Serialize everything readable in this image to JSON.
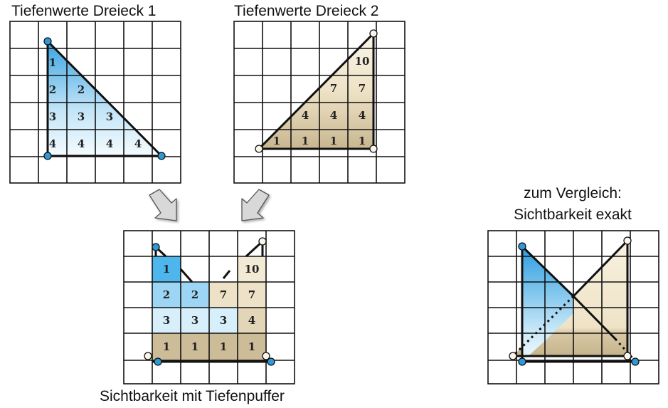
{
  "titles": {
    "panel1": "Tiefenwerte Dreieck 1",
    "panel2": "Tiefenwerte Dreieck 2",
    "result": "Sichtbarkeit mit Tiefenpuffer",
    "compare_line1": "zum Vergleich:",
    "compare_line2": "Sichtbarkeit exakt"
  },
  "panel1_values": {
    "row1": [
      "1"
    ],
    "row2": [
      "2",
      "2"
    ],
    "row3": [
      "3",
      "3",
      "3"
    ],
    "row4": [
      "4",
      "4",
      "4",
      "4"
    ]
  },
  "panel2_values": {
    "row1": [
      "10"
    ],
    "row2": [
      "7",
      "7"
    ],
    "row3": [
      "4",
      "4",
      "4"
    ],
    "row4": [
      "1",
      "1",
      "1",
      "1"
    ]
  },
  "result_values": {
    "row1": [
      "1",
      "10"
    ],
    "row2": [
      "2",
      "2",
      "7",
      "7"
    ],
    "row3": [
      "3",
      "3",
      "3",
      "4"
    ],
    "row4": [
      "1",
      "1",
      "1",
      "1"
    ]
  },
  "colors": {
    "grid": "#111111",
    "blue_dark": "#2e9fe0",
    "blue_light": "#e8f6fd",
    "tan_dark": "#cdbc98",
    "tan_light": "#f6efdd",
    "vertex_blue": "#2d9ad6",
    "arrow_fill": "#d8d8d8"
  }
}
